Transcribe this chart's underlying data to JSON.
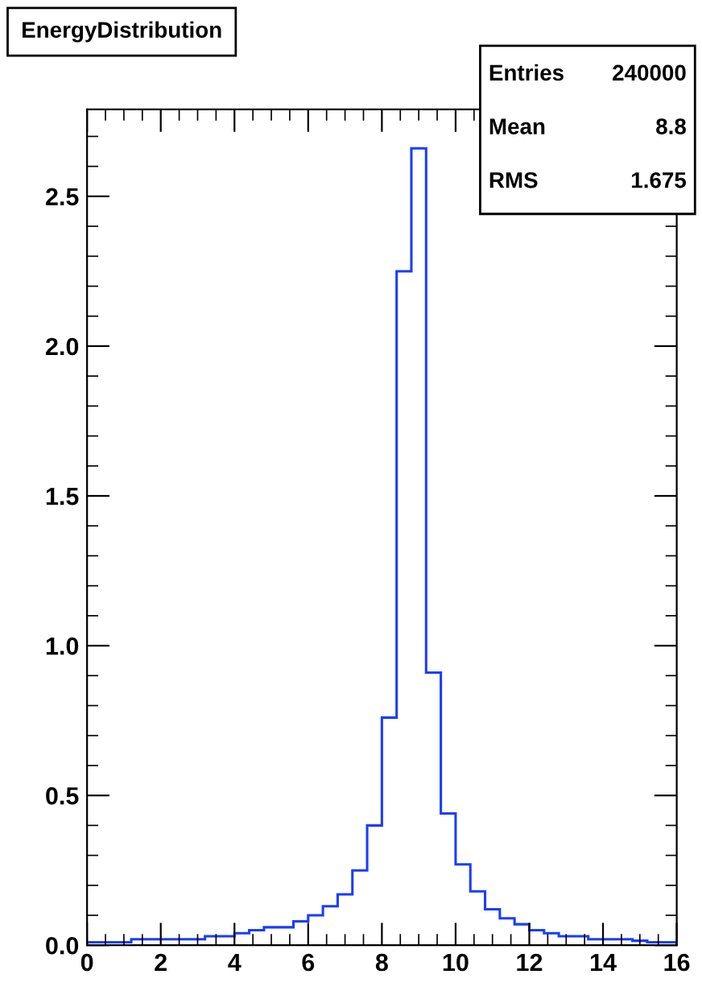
{
  "chart_data": {
    "type": "histogram",
    "title": "EnergyDistribution",
    "bins": [
      0,
      0.4,
      0.8,
      1.2,
      1.6,
      2.0,
      2.4,
      2.8,
      3.2,
      3.6,
      4.0,
      4.4,
      4.8,
      5.2,
      5.6,
      6.0,
      6.4,
      6.8,
      7.2,
      7.6,
      8.0,
      8.4,
      8.8,
      9.2,
      9.6,
      10.0,
      10.4,
      10.8,
      11.2,
      11.6,
      12.0,
      12.4,
      12.8,
      13.2,
      13.6,
      14.0,
      14.4,
      14.8,
      15.2,
      15.6,
      16.0
    ],
    "values": [
      0.01,
      0.01,
      0.01,
      0.02,
      0.02,
      0.02,
      0.02,
      0.02,
      0.03,
      0.03,
      0.04,
      0.05,
      0.06,
      0.06,
      0.08,
      0.1,
      0.13,
      0.17,
      0.25,
      0.4,
      0.76,
      2.25,
      2.66,
      0.91,
      0.44,
      0.27,
      0.18,
      0.12,
      0.09,
      0.07,
      0.05,
      0.04,
      0.03,
      0.03,
      0.02,
      0.02,
      0.02,
      0.015,
      0.01,
      0.01
    ],
    "color": "#1a3cff",
    "xlim": [
      0,
      16
    ],
    "xticks": [
      0,
      2,
      4,
      6,
      8,
      10,
      12,
      14,
      16
    ],
    "ylim": [
      0,
      2.79
    ],
    "yticks": [
      {
        "value": 0,
        "label": "0.0"
      },
      {
        "value": 0.5,
        "label": "0.5"
      },
      {
        "value": 1.0,
        "label": "1.0"
      },
      {
        "value": 1.5,
        "label": "1.5"
      },
      {
        "value": 2.0,
        "label": "2.0"
      },
      {
        "value": 2.5,
        "label": "2.5"
      }
    ],
    "annotations": [
      "Entries 240000",
      "Mean 8.8",
      "RMS 1.675"
    ]
  }
}
